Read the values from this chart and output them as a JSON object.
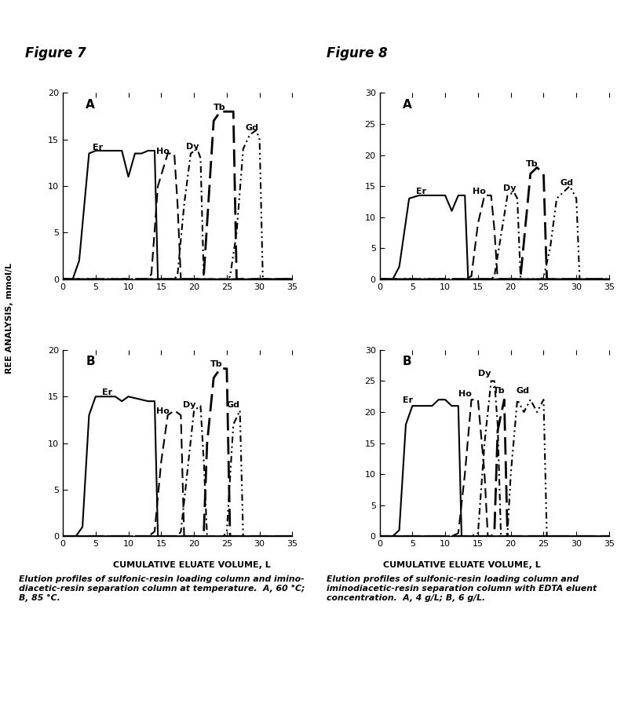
{
  "fig7_title": "Figure 7",
  "fig8_title": "Figure 8",
  "caption_left": "Elution profiles of sulfonic-resin loading column and imino-\ndiacetic-resin separation column at temperature.  A, 60 °C;\nB, 85 °C.",
  "caption_right": "Elution profiles of sulfonic-resin loading column and\niminodiacetic-resin separation column with EDTA eluent\nconcentration.  A, 4 g/L; B, 6 g/L.",
  "ylabel": "REE ANALYSIS, mmol/L",
  "xlabel": "CUMULATIVE ELUATE VOLUME, L",
  "xlim": [
    0,
    35
  ],
  "xticks": [
    0,
    5,
    10,
    15,
    20,
    25,
    30,
    35
  ],
  "f7A": {
    "label": "A",
    "ylim": [
      0,
      20
    ],
    "yticks": [
      0,
      5,
      10,
      15,
      20
    ],
    "Er": {
      "x": [
        0,
        1.5,
        2.5,
        4,
        5,
        9,
        10,
        11,
        12,
        13,
        14,
        14.5,
        35
      ],
      "y": [
        0,
        0,
        2,
        13.5,
        13.8,
        13.8,
        11,
        13.5,
        13.5,
        13.8,
        13.8,
        0,
        0
      ]
    },
    "Ho": {
      "x": [
        0,
        12.5,
        13.5,
        14.5,
        16,
        17,
        17.5,
        18,
        35
      ],
      "y": [
        0,
        0,
        0.5,
        10,
        13.5,
        13.5,
        8,
        0,
        0
      ]
    },
    "Dy": {
      "x": [
        0,
        17,
        17.5,
        18.5,
        19.5,
        20.5,
        21,
        21.5,
        35
      ],
      "y": [
        0,
        0,
        0.5,
        8,
        13.5,
        14,
        13,
        0,
        0
      ]
    },
    "Tb": {
      "x": [
        0,
        21,
        21.5,
        22,
        23,
        24,
        25,
        26,
        26.5,
        35
      ],
      "y": [
        0,
        0,
        0.5,
        6,
        17,
        18,
        18,
        18,
        0,
        0
      ]
    },
    "Gd": {
      "x": [
        0,
        25,
        25.5,
        26.5,
        27.5,
        28.5,
        29.5,
        30,
        30.5,
        35
      ],
      "y": [
        0,
        0,
        0.3,
        5,
        14,
        15.5,
        16,
        15,
        0,
        0
      ]
    }
  },
  "f7B": {
    "label": "B",
    "ylim": [
      0,
      20
    ],
    "yticks": [
      0,
      5,
      10,
      15,
      20
    ],
    "Er": {
      "x": [
        0,
        2,
        3,
        4,
        5,
        8,
        9,
        10,
        13,
        14,
        14.5,
        35
      ],
      "y": [
        0,
        0,
        1,
        13,
        15,
        15,
        14.5,
        15,
        14.5,
        14.5,
        0,
        0
      ]
    },
    "Ho": {
      "x": [
        0,
        13,
        14,
        15,
        16,
        17,
        18,
        18.5,
        35
      ],
      "y": [
        0,
        0,
        0.5,
        8,
        13,
        13.5,
        13,
        0,
        0
      ]
    },
    "Dy": {
      "x": [
        0,
        17.5,
        18,
        19,
        20,
        21,
        21.5,
        22,
        35
      ],
      "y": [
        0,
        0,
        0.5,
        7,
        13.5,
        14,
        8,
        0,
        0
      ]
    },
    "Tb": {
      "x": [
        0,
        21,
        21.5,
        22,
        23,
        24,
        24.5,
        25,
        25.5,
        35
      ],
      "y": [
        0,
        0,
        0.5,
        10,
        17,
        18,
        18,
        18,
        0,
        0
      ]
    },
    "Gd": {
      "x": [
        0,
        24.5,
        25,
        26,
        27,
        27.5,
        35
      ],
      "y": [
        0,
        0,
        0.5,
        12,
        13.5,
        0,
        0
      ]
    }
  },
  "f8A": {
    "label": "A",
    "ylim": [
      0,
      30
    ],
    "yticks": [
      0,
      5,
      10,
      15,
      20,
      25,
      30
    ],
    "Er": {
      "x": [
        0,
        2,
        3,
        4.5,
        6,
        10,
        11,
        12,
        13,
        13.5,
        35
      ],
      "y": [
        0,
        0,
        2,
        13,
        13.5,
        13.5,
        11,
        13.5,
        13.5,
        0,
        0
      ]
    },
    "Ho": {
      "x": [
        0,
        13,
        14,
        15,
        16,
        17,
        17.5,
        18,
        35
      ],
      "y": [
        0,
        0,
        0.5,
        9,
        13.5,
        13.5,
        8,
        0,
        0
      ]
    },
    "Dy": {
      "x": [
        0,
        17,
        17.5,
        18.5,
        19.5,
        20.5,
        21,
        21.5,
        35
      ],
      "y": [
        0,
        0,
        0.5,
        7,
        13.5,
        14,
        13,
        0,
        0
      ]
    },
    "Tb": {
      "x": [
        0,
        21,
        21.5,
        22,
        23,
        24,
        25,
        25.5,
        35
      ],
      "y": [
        0,
        0,
        0.5,
        6,
        17,
        18,
        17,
        0,
        0
      ]
    },
    "Gd": {
      "x": [
        0,
        24.5,
        25,
        26,
        27,
        28,
        29,
        30,
        30.5,
        35
      ],
      "y": [
        0,
        0,
        0.3,
        5,
        13,
        14,
        15,
        13,
        0,
        0
      ]
    }
  },
  "f8B": {
    "label": "B",
    "ylim": [
      0,
      30
    ],
    "yticks": [
      0,
      5,
      10,
      15,
      20,
      25,
      30
    ],
    "Er": {
      "x": [
        0,
        2,
        3,
        4,
        5,
        8,
        9,
        10,
        11,
        12,
        12.5,
        35
      ],
      "y": [
        0,
        0,
        1,
        18,
        21,
        21,
        22,
        22,
        21,
        21,
        0,
        0
      ]
    },
    "Ho": {
      "x": [
        0,
        11,
        12,
        13,
        14,
        15,
        16,
        16.5,
        35
      ],
      "y": [
        0,
        0,
        0.5,
        10,
        22,
        22,
        10,
        0,
        0
      ]
    },
    "Dy": {
      "x": [
        0,
        14,
        15,
        16,
        17,
        17.5,
        18,
        18.5,
        35
      ],
      "y": [
        0,
        0,
        0.5,
        15,
        25,
        25,
        18,
        0,
        0
      ]
    },
    "Tb": {
      "x": [
        0,
        17,
        17.5,
        18,
        19,
        19.5,
        35
      ],
      "y": [
        0,
        0,
        0.5,
        17,
        22,
        0,
        0
      ]
    },
    "Gd": {
      "x": [
        0,
        19,
        19.5,
        20,
        21,
        22,
        23,
        24,
        25,
        25.5,
        35
      ],
      "y": [
        0,
        0,
        0.5,
        10,
        22,
        20,
        22,
        20,
        22,
        0,
        0
      ]
    }
  }
}
